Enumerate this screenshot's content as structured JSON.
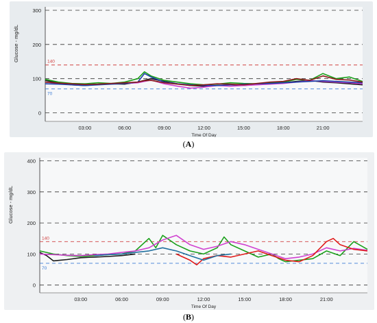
{
  "chart_data": [
    {
      "type": "line",
      "panel": "A",
      "ylabel": "Glucose - mg/dL",
      "xlabel": "Time Of Day",
      "ylim": [
        -25,
        310
      ],
      "xlim": [
        0,
        24
      ],
      "y_ticks": [
        0,
        100,
        200,
        300
      ],
      "y_tick_labels": [
        "0",
        "100",
        "200",
        "300"
      ],
      "x_ticks": [
        3,
        6,
        9,
        12,
        15,
        18,
        21
      ],
      "x_tick_labels": [
        "03:00",
        "06:00",
        "09:00",
        "12:00",
        "15:00",
        "18:00",
        "21:00"
      ],
      "gridlines": [
        0,
        100,
        200,
        300
      ],
      "reference_lines": [
        {
          "value": 140,
          "label": "140",
          "color": "#d04040"
        },
        {
          "value": 70,
          "label": "70",
          "color": "#3a7bd5"
        }
      ],
      "legend": "none",
      "series": [
        {
          "color": "#1a1a1a",
          "x": [
            0,
            1,
            2,
            3,
            4,
            5,
            6,
            7,
            7.5,
            8,
            9,
            10,
            11,
            12,
            13,
            14,
            15,
            16,
            17,
            18,
            19,
            20,
            21,
            22,
            23,
            24
          ],
          "y": [
            95,
            88,
            82,
            80,
            83,
            85,
            84,
            90,
            95,
            100,
            92,
            85,
            80,
            78,
            80,
            82,
            80,
            83,
            85,
            88,
            92,
            95,
            90,
            88,
            85,
            82
          ]
        },
        {
          "color": "#1aa01a",
          "x": [
            0,
            1,
            2,
            3,
            4,
            5,
            6,
            7,
            7.5,
            8,
            9,
            10,
            11,
            12,
            13,
            14,
            15,
            16,
            17,
            18,
            19,
            20,
            21,
            22,
            23,
            24
          ],
          "y": [
            98,
            90,
            86,
            85,
            88,
            86,
            90,
            100,
            120,
            108,
            95,
            90,
            85,
            82,
            84,
            88,
            86,
            85,
            88,
            90,
            98,
            95,
            115,
            100,
            105,
            92
          ]
        },
        {
          "color": "#d040d0",
          "x": [
            0,
            1,
            2,
            3,
            4,
            5,
            6,
            7,
            7.5,
            8,
            9,
            10,
            11,
            12,
            13,
            14,
            15,
            16,
            17,
            18,
            19,
            20,
            21,
            22,
            23,
            24
          ],
          "y": [
            90,
            86,
            84,
            82,
            84,
            85,
            86,
            88,
            92,
            96,
            85,
            78,
            72,
            75,
            80,
            78,
            80,
            82,
            84,
            86,
            90,
            94,
            92,
            90,
            88,
            85
          ]
        },
        {
          "color": "#1a3ea8",
          "x": [
            0,
            1,
            2,
            3,
            4,
            5,
            6,
            7,
            7.5,
            8,
            9,
            10,
            11,
            12,
            13,
            14,
            15,
            16,
            17,
            18,
            19,
            20,
            21,
            22,
            23,
            24
          ],
          "y": [
            85,
            84,
            82,
            80,
            82,
            84,
            86,
            90,
            115,
            105,
            90,
            85,
            82,
            80,
            80,
            82,
            84,
            85,
            86,
            88,
            90,
            92,
            94,
            92,
            90,
            88
          ]
        },
        {
          "color": "#8a1a1a",
          "x": [
            0,
            1,
            2,
            3,
            4,
            5,
            6,
            7,
            7.5,
            8,
            9,
            10,
            11,
            12,
            13,
            14,
            15,
            16,
            17,
            18,
            19,
            20,
            21,
            22,
            23,
            24
          ],
          "y": [
            90,
            87,
            85,
            83,
            84,
            86,
            88,
            90,
            94,
            95,
            88,
            84,
            80,
            82,
            85,
            84,
            82,
            86,
            90,
            92,
            100,
            95,
            108,
            98,
            96,
            90
          ]
        }
      ]
    },
    {
      "type": "line",
      "panel": "B",
      "ylabel": "Glucose - mg/dL",
      "xlabel": "Time Of Day",
      "ylim": [
        -25,
        410
      ],
      "xlim": [
        0,
        24
      ],
      "y_ticks": [
        0,
        100,
        200,
        300,
        400
      ],
      "y_tick_labels": [
        "0",
        "100",
        "200",
        "300",
        "400"
      ],
      "x_ticks": [
        3,
        6,
        9,
        12,
        15,
        18,
        21
      ],
      "x_tick_labels": [
        "03:00",
        "06:00",
        "09:00",
        "12:00",
        "15:00",
        "18:00",
        "21:00"
      ],
      "gridlines": [
        0,
        100,
        200,
        300,
        400
      ],
      "reference_lines": [
        {
          "value": 140,
          "label": "140",
          "color": "#d04040"
        },
        {
          "value": 70,
          "label": "70",
          "color": "#3a7bd5"
        }
      ],
      "legend": "none",
      "series": [
        {
          "color": "#1a1a1a",
          "x": [
            0,
            0.5,
            1,
            1.5,
            2,
            3,
            4,
            5,
            6,
            7
          ],
          "y": [
            105,
            95,
            78,
            80,
            82,
            88,
            90,
            92,
            95,
            100
          ]
        },
        {
          "color": "#1aa01a",
          "x": [
            0,
            1,
            2,
            3,
            4,
            5,
            6,
            7,
            8,
            8.5,
            9,
            10,
            11,
            12,
            13,
            13.5,
            14,
            15,
            16,
            17,
            17.5,
            18,
            19,
            20,
            21,
            22,
            23,
            24
          ],
          "y": [
            110,
            100,
            95,
            92,
            95,
            98,
            100,
            110,
            150,
            120,
            160,
            130,
            110,
            100,
            120,
            155,
            130,
            110,
            90,
            100,
            85,
            75,
            80,
            85,
            110,
            95,
            140,
            115
          ]
        },
        {
          "color": "#d040d0",
          "x": [
            0,
            1,
            2,
            3,
            4,
            5,
            6,
            7,
            8,
            9,
            10,
            11,
            12,
            13,
            14,
            15,
            16,
            17,
            18,
            19,
            20,
            21,
            22,
            23,
            24
          ],
          "y": [
            100,
            98,
            96,
            95,
            98,
            100,
            105,
            110,
            120,
            145,
            160,
            130,
            115,
            125,
            140,
            130,
            115,
            100,
            85,
            90,
            100,
            120,
            110,
            118,
            112
          ]
        },
        {
          "color": "#e01a1a",
          "x": [
            10,
            11,
            11.5,
            12,
            13,
            14,
            15,
            16,
            17,
            18,
            19,
            20,
            21,
            21.5,
            22,
            23,
            24
          ],
          "y": [
            100,
            80,
            65,
            85,
            95,
            90,
            100,
            110,
            95,
            80,
            75,
            95,
            140,
            150,
            130,
            115,
            110
          ]
        },
        {
          "color": "#1f6f9f",
          "x": [
            4,
            5,
            6,
            7,
            8,
            9,
            10,
            11,
            12,
            13,
            14
          ],
          "y": [
            95,
            98,
            100,
            105,
            110,
            120,
            110,
            95,
            80,
            95,
            100
          ]
        }
      ]
    }
  ],
  "captions": {
    "a": "(A)",
    "b": "(B)"
  }
}
